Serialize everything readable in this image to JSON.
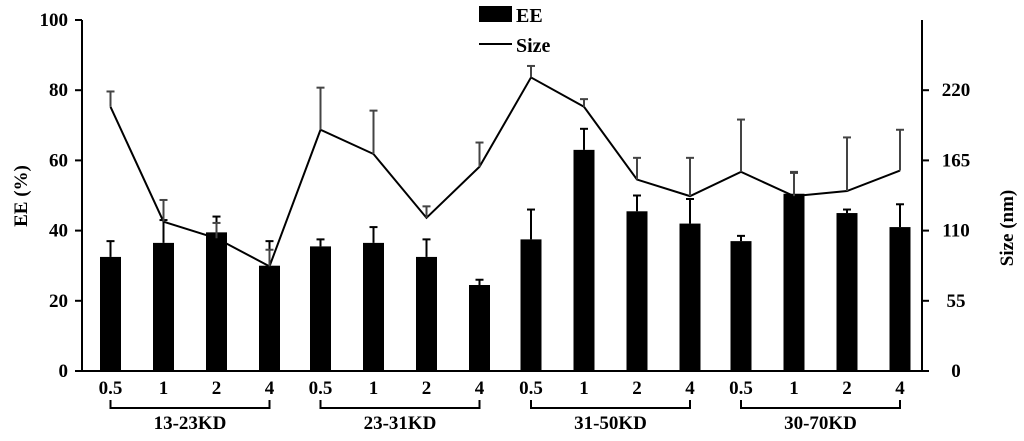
{
  "chart_data": {
    "type": "bar",
    "groups": [
      {
        "label": "13-23KD",
        "categories": [
          "0.5",
          "1",
          "2",
          "4"
        ]
      },
      {
        "label": "23-31KD",
        "categories": [
          "0.5",
          "1",
          "2",
          "4"
        ]
      },
      {
        "label": "31-50KD",
        "categories": [
          "0.5",
          "1",
          "2",
          "4"
        ]
      },
      {
        "label": "30-70KD",
        "categories": [
          "0.5",
          "1",
          "2",
          "4"
        ]
      }
    ],
    "series": [
      {
        "name": "EE",
        "type": "bar",
        "axis": "left",
        "color": "#000000",
        "values": [
          32.5,
          36.5,
          39.5,
          30,
          35.5,
          36.5,
          32.5,
          24.5,
          37.5,
          63,
          45.5,
          42,
          37,
          50.5,
          45,
          41
        ],
        "errors": [
          4.5,
          6.5,
          4.5,
          7,
          2,
          4.5,
          5,
          1.5,
          8.5,
          6,
          4.5,
          7,
          1.5,
          6,
          1,
          6.5
        ]
      },
      {
        "name": "Size",
        "type": "line",
        "axis": "right",
        "color": "#000000",
        "values": [
          207,
          117,
          104,
          82,
          189,
          170,
          120,
          160,
          230,
          207,
          150,
          137,
          156,
          137,
          141,
          157
        ],
        "errors": [
          12,
          17,
          12,
          13,
          33,
          34,
          9,
          19,
          9,
          6,
          17,
          30,
          41,
          19,
          42,
          32
        ]
      }
    ],
    "left_axis": {
      "label": "EE (%)",
      "range": [
        0,
        100
      ],
      "ticks": [
        "0",
        "20",
        "40",
        "60",
        "80",
        "100"
      ]
    },
    "right_axis": {
      "label": "Size (nm)",
      "range": [
        0,
        275
      ],
      "ticks": [
        "0",
        "55",
        "110",
        "165",
        "220"
      ]
    },
    "legend": {
      "position": "top-center",
      "entries": [
        "EE",
        "Size"
      ]
    },
    "grid": false
  }
}
